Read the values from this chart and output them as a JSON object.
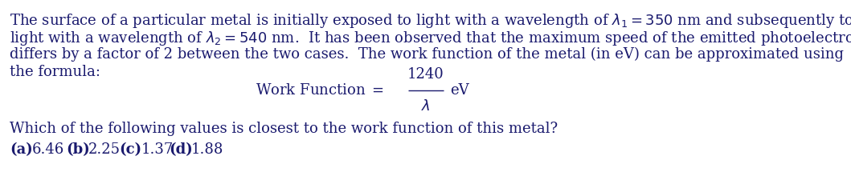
{
  "background_color": "#ffffff",
  "text_color": "#1a1a6e",
  "font_family": "DejaVu Serif",
  "line1": "The surface of a particular metal is initially exposed to light with a wavelength of $\\lambda_1 = 350$ nm and subsequently to",
  "line2": "light with a wavelength of $\\lambda_2 = 540$ nm.  It has been observed that the maximum speed of the emitted photoelectrons",
  "line3": "differs by a factor of 2 between the two cases.  The work function of the metal (in eV) can be approximated using",
  "line4": "the formula:",
  "formula_label": "Work Function $=$",
  "formula_numerator": "1240",
  "formula_denominator": "$\\lambda$",
  "formula_unit": "eV",
  "question": "Which of the following values is closest to the work function of this metal?",
  "opt_a_label": "(a)",
  "opt_a_val": "6.46",
  "opt_b_label": "(b)",
  "opt_b_val": "2.25",
  "opt_c_label": "(c)",
  "opt_c_val": "1.37",
  "opt_d_label": "(d)",
  "opt_d_val": "1.88",
  "fontsize": 13.0,
  "fig_width": 10.59,
  "fig_height": 2.35,
  "dpi": 100
}
